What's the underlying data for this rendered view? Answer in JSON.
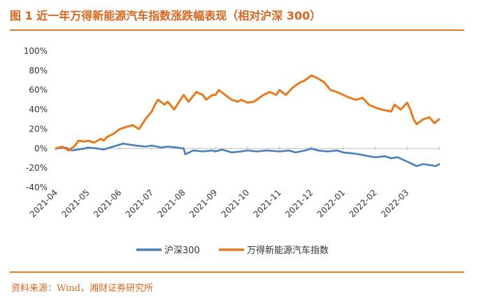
{
  "header": {
    "title": "图 1  近一年万得新能源汽车指数涨跌幅表现（相对沪深 300）"
  },
  "footer": {
    "source": "资料来源：Wind，湘财证券研究所"
  },
  "chart_data": {
    "type": "line",
    "title": "近一年万得新能源汽车指数涨跌幅表现（相对沪深 300）",
    "xlabel": "",
    "ylabel": "",
    "ylim": [
      -40,
      100
    ],
    "yticks": [
      -40,
      -20,
      0,
      20,
      40,
      60,
      80,
      100
    ],
    "ytick_labels": [
      "-40%",
      "-20%",
      "0%",
      "20%",
      "40%",
      "60%",
      "80%",
      "100%"
    ],
    "xlim": [
      0,
      12
    ],
    "xticks": [
      0,
      1,
      2,
      3,
      4,
      5,
      6,
      7,
      8,
      9,
      10,
      11
    ],
    "xtick_labels": [
      "2021-04",
      "2021-05",
      "2021-06",
      "2021-07",
      "2021-08",
      "2021-09",
      "2021-10",
      "2021-11",
      "2021-12",
      "2022-01",
      "2022-02",
      "2022-03"
    ],
    "grid": false,
    "legend_position": "bottom",
    "series": [
      {
        "name": "沪深300",
        "color": "#4a7ebb",
        "x": [
          0,
          0.3,
          0.5,
          0.7,
          0.9,
          1.0,
          1.3,
          1.5,
          1.8,
          2.0,
          2.1,
          2.3,
          2.5,
          2.8,
          3.0,
          3.3,
          3.5,
          3.8,
          4.0,
          4.05,
          4.3,
          4.6,
          4.9,
          5.0,
          5.2,
          5.5,
          5.8,
          6.0,
          6.3,
          6.6,
          7.0,
          7.3,
          7.5,
          7.8,
          8.0,
          8.2,
          8.5,
          8.8,
          9.0,
          9.3,
          9.5,
          9.8,
          10.0,
          10.3,
          10.5,
          10.7,
          10.9,
          11.1,
          11.3,
          11.5,
          11.7,
          11.9,
          12.0
        ],
        "values": [
          0,
          1,
          -2,
          -1,
          0,
          1,
          0,
          -1,
          2,
          4,
          5,
          4,
          3,
          2,
          3,
          1,
          2,
          1,
          0,
          -6,
          -2,
          -3,
          -2,
          -3,
          -1,
          -4,
          -3,
          -2,
          -3,
          -2,
          -3,
          -2,
          -4,
          -2,
          0,
          -2,
          -3,
          -2,
          -4,
          -5,
          -6,
          -8,
          -9,
          -8,
          -10,
          -9,
          -12,
          -15,
          -18,
          -16,
          -17,
          -18,
          -16
        ]
      },
      {
        "name": "万得新能源汽车指数",
        "color": "#e87b20",
        "x": [
          0,
          0.2,
          0.4,
          0.6,
          0.7,
          0.9,
          1.0,
          1.2,
          1.4,
          1.5,
          1.6,
          1.8,
          2.0,
          2.2,
          2.4,
          2.6,
          2.8,
          3.0,
          3.1,
          3.2,
          3.4,
          3.5,
          3.7,
          3.9,
          4.0,
          4.15,
          4.4,
          4.6,
          4.7,
          4.9,
          5.0,
          5.1,
          5.3,
          5.5,
          5.7,
          5.8,
          6.0,
          6.2,
          6.5,
          6.7,
          6.9,
          7.0,
          7.2,
          7.4,
          7.6,
          7.8,
          8.0,
          8.2,
          8.4,
          8.6,
          8.8,
          9.0,
          9.2,
          9.4,
          9.6,
          9.8,
          10.0,
          10.2,
          10.5,
          10.6,
          10.8,
          11.0,
          11.1,
          11.2,
          11.3,
          11.5,
          11.7,
          11.85,
          12.0
        ],
        "values": [
          0,
          2,
          -2,
          3,
          8,
          7,
          8,
          6,
          10,
          8,
          12,
          15,
          20,
          22,
          24,
          20,
          30,
          38,
          45,
          50,
          45,
          48,
          40,
          50,
          55,
          48,
          58,
          55,
          50,
          55,
          55,
          60,
          55,
          50,
          48,
          50,
          47,
          48,
          55,
          58,
          55,
          60,
          55,
          62,
          67,
          70,
          75,
          72,
          68,
          60,
          58,
          55,
          52,
          50,
          52,
          45,
          42,
          40,
          38,
          45,
          40,
          47,
          40,
          30,
          25,
          30,
          32,
          26,
          30
        ]
      }
    ]
  }
}
